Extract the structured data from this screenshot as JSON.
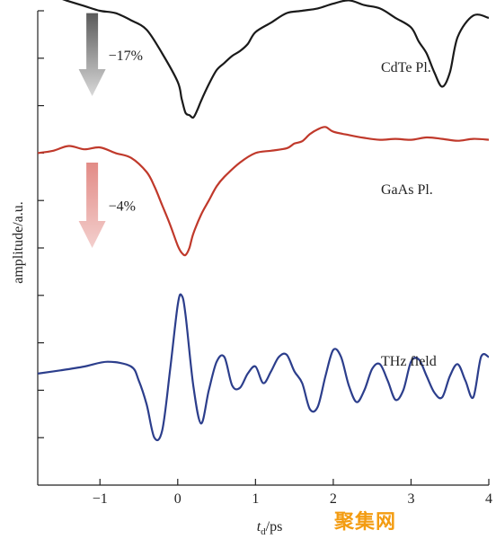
{
  "chart_data": {
    "type": "line",
    "title": "",
    "xlabel_main": "t",
    "xlabel_sub": "d",
    "xlabel_unit": "/ps",
    "ylabel": "amplitude/a.u.",
    "xlim": [
      -1.8,
      4
    ],
    "xticks": [
      -1,
      0,
      1,
      2,
      3,
      4
    ],
    "xtick_labels": [
      "−1",
      "0",
      "1",
      "2",
      "3",
      "4"
    ],
    "ylim": [
      0,
      10
    ],
    "yticks": [
      1.0,
      2.0,
      3.0,
      4.0,
      5.0,
      6.0,
      7.0,
      8.0,
      9.0,
      10.0
    ],
    "grid": false,
    "legend": "none",
    "series": [
      {
        "name": "CdTe Pl.",
        "color": "#1a1a1a",
        "x": [
          -1.8,
          -1.6,
          -1.4,
          -1.2,
          -1.0,
          -0.8,
          -0.6,
          -0.4,
          -0.2,
          0.0,
          0.05,
          0.1,
          0.15,
          0.2,
          0.25,
          0.3,
          0.4,
          0.5,
          0.6,
          0.7,
          0.8,
          0.9,
          1.0,
          1.2,
          1.4,
          1.6,
          1.8,
          2.0,
          2.2,
          2.4,
          2.6,
          2.8,
          3.0,
          3.1,
          3.2,
          3.3,
          3.4,
          3.5,
          3.6,
          3.8,
          4.0
        ],
        "y": [
          10.28,
          10.3,
          10.2,
          10.1,
          10.0,
          9.95,
          9.8,
          9.6,
          9.1,
          8.5,
          8.15,
          7.85,
          7.8,
          7.75,
          7.9,
          8.1,
          8.45,
          8.75,
          8.9,
          9.05,
          9.15,
          9.3,
          9.55,
          9.75,
          9.95,
          10.0,
          10.05,
          10.15,
          10.22,
          10.12,
          10.05,
          9.85,
          9.65,
          9.35,
          9.1,
          8.7,
          8.4,
          8.7,
          9.45,
          9.9,
          9.85
        ]
      },
      {
        "name": "GaAs Pl.",
        "color": "#c0392b",
        "x": [
          -1.8,
          -1.6,
          -1.4,
          -1.2,
          -1.0,
          -0.8,
          -0.6,
          -0.4,
          -0.3,
          -0.2,
          -0.1,
          0.0,
          0.05,
          0.1,
          0.15,
          0.2,
          0.3,
          0.4,
          0.5,
          0.6,
          0.8,
          1.0,
          1.2,
          1.4,
          1.5,
          1.6,
          1.7,
          1.8,
          1.9,
          2.0,
          2.2,
          2.4,
          2.6,
          2.8,
          3.0,
          3.2,
          3.4,
          3.6,
          3.8,
          4.0
        ],
        "y": [
          7.0,
          7.05,
          7.15,
          7.08,
          7.12,
          7.0,
          6.9,
          6.6,
          6.3,
          5.9,
          5.5,
          5.05,
          4.9,
          4.85,
          5.0,
          5.3,
          5.7,
          6.0,
          6.3,
          6.5,
          6.8,
          7.0,
          7.05,
          7.1,
          7.2,
          7.25,
          7.4,
          7.5,
          7.55,
          7.45,
          7.38,
          7.32,
          7.28,
          7.3,
          7.28,
          7.33,
          7.3,
          7.26,
          7.3,
          7.28
        ]
      },
      {
        "name": "THz field",
        "color": "#2c3e8c",
        "x": [
          -1.8,
          -1.5,
          -1.2,
          -0.9,
          -0.6,
          -0.5,
          -0.4,
          -0.3,
          -0.2,
          -0.1,
          0.0,
          0.05,
          0.1,
          0.2,
          0.3,
          0.4,
          0.5,
          0.6,
          0.7,
          0.8,
          0.9,
          1.0,
          1.1,
          1.2,
          1.3,
          1.4,
          1.5,
          1.6,
          1.7,
          1.8,
          1.9,
          2.0,
          2.1,
          2.2,
          2.3,
          2.4,
          2.5,
          2.6,
          2.7,
          2.8,
          2.9,
          3.0,
          3.1,
          3.2,
          3.3,
          3.4,
          3.5,
          3.6,
          3.7,
          3.8,
          3.9,
          4.0
        ],
        "y": [
          2.35,
          2.42,
          2.5,
          2.6,
          2.5,
          2.2,
          1.7,
          1.0,
          1.15,
          2.4,
          3.8,
          4.0,
          3.6,
          2.1,
          1.3,
          2.0,
          2.6,
          2.7,
          2.1,
          2.05,
          2.35,
          2.5,
          2.15,
          2.4,
          2.7,
          2.75,
          2.4,
          2.15,
          1.6,
          1.65,
          2.3,
          2.85,
          2.7,
          2.1,
          1.75,
          2.0,
          2.45,
          2.55,
          2.2,
          1.8,
          2.0,
          2.6,
          2.65,
          2.3,
          1.95,
          1.85,
          2.3,
          2.55,
          2.2,
          1.85,
          2.7,
          2.7
        ]
      }
    ],
    "annotations": [
      {
        "text": "−17%",
        "color_top": "#5a5a5a",
        "color_bottom": "#d9d9d9",
        "arrow_from": [
          -1.1,
          9.95
        ],
        "arrow_to": [
          -1.1,
          8.2
        ]
      },
      {
        "text": "−4%",
        "color_top": "#e28b86",
        "color_bottom": "#f3cfcd",
        "arrow_from": [
          -1.1,
          6.8
        ],
        "arrow_to": [
          -1.1,
          5.0
        ]
      }
    ],
    "watermark": "聚集网"
  }
}
